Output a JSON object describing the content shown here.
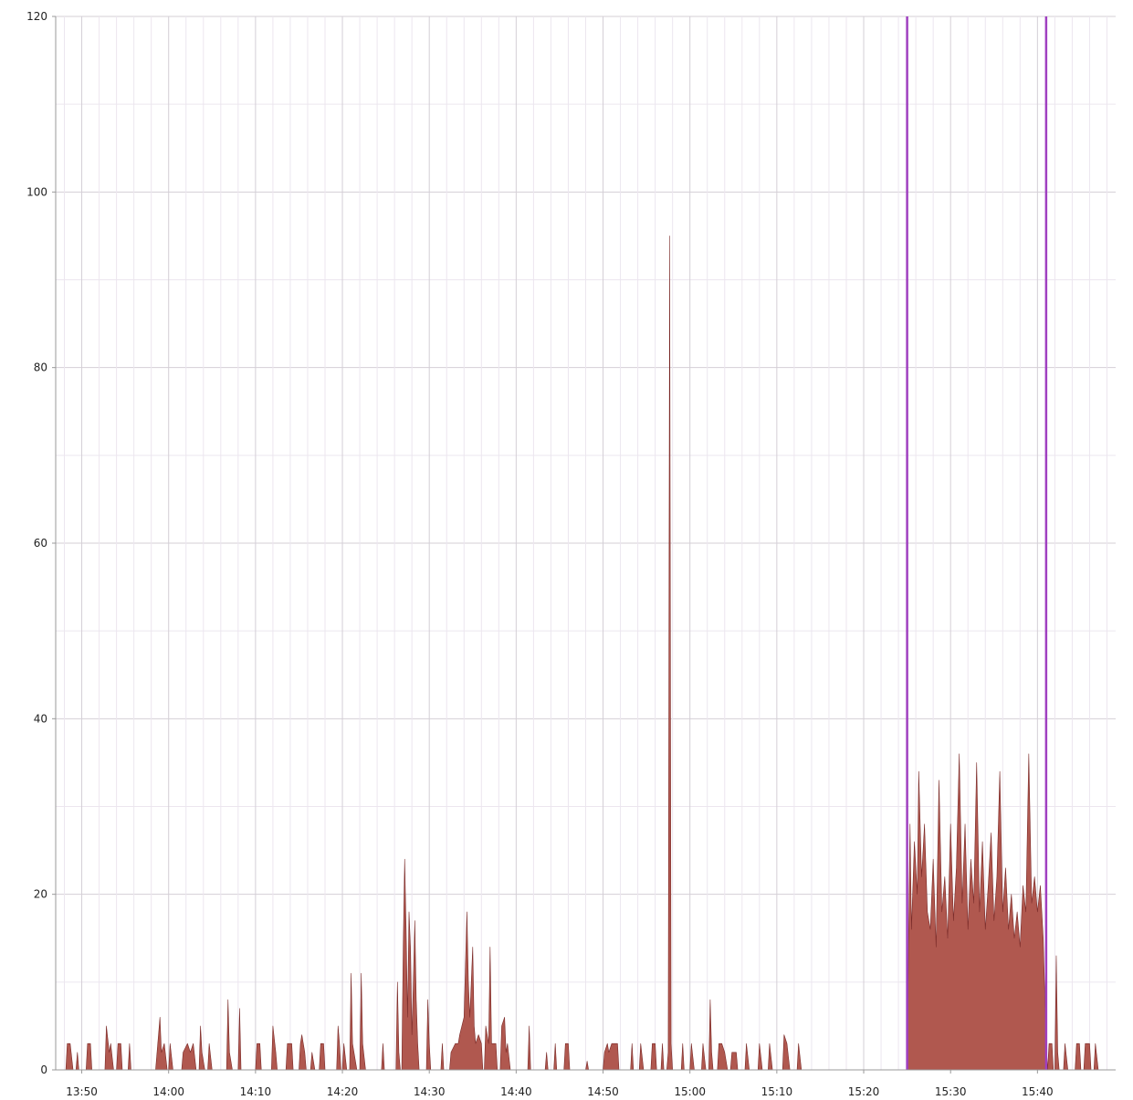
{
  "chart_data": {
    "type": "area",
    "title": "",
    "xlabel": "",
    "ylabel": "",
    "ylim": [
      0,
      120
    ],
    "xlim": [
      "13:47",
      "15:49"
    ],
    "grid": true,
    "legend": "none",
    "x_ticks": [
      "13:50",
      "14:00",
      "14:10",
      "14:20",
      "14:30",
      "14:40",
      "14:50",
      "15:00",
      "15:10",
      "15:20",
      "15:30",
      "15:40"
    ],
    "y_ticks": [
      "0",
      "20",
      "40",
      "60",
      "80",
      "100",
      "120"
    ],
    "markers": [
      "15:25",
      "15:41"
    ],
    "colors": {
      "area_fill": "#b0584f",
      "area_dark": "#7a2a28",
      "marker": "#a040c0",
      "grid_major": "#d4cfd6",
      "grid_minor": "#ece6ef",
      "axis": "#999999"
    },
    "series": [
      {
        "points": [
          [
            "13:48:10",
            0
          ],
          [
            "13:48:20",
            3
          ],
          [
            "13:48:40",
            3
          ],
          [
            "13:49:00",
            0
          ],
          [
            "13:49:20",
            0
          ],
          [
            "13:49:30",
            2
          ],
          [
            "13:49:40",
            0
          ],
          [
            "13:50:30",
            0
          ],
          [
            "13:50:40",
            3
          ],
          [
            "13:51:00",
            3
          ],
          [
            "13:51:10",
            0
          ],
          [
            "13:52:40",
            0
          ],
          [
            "13:52:50",
            5
          ],
          [
            "13:53:10",
            2
          ],
          [
            "13:53:20",
            3
          ],
          [
            "13:53:40",
            0
          ],
          [
            "13:54:00",
            0
          ],
          [
            "13:54:10",
            3
          ],
          [
            "13:54:30",
            3
          ],
          [
            "13:54:40",
            0
          ],
          [
            "13:55:20",
            0
          ],
          [
            "13:55:30",
            3
          ],
          [
            "13:55:40",
            0
          ],
          [
            "13:58:30",
            0
          ],
          [
            "13:58:40",
            2
          ],
          [
            "13:59:00",
            6
          ],
          [
            "13:59:10",
            2
          ],
          [
            "13:59:30",
            3
          ],
          [
            "13:59:50",
            0
          ],
          [
            "14:00:00",
            0
          ],
          [
            "14:00:10",
            3
          ],
          [
            "14:00:30",
            0
          ],
          [
            "14:01:30",
            0
          ],
          [
            "14:01:40",
            2
          ],
          [
            "14:02:10",
            3
          ],
          [
            "14:02:30",
            2
          ],
          [
            "14:02:50",
            3
          ],
          [
            "14:03:10",
            0
          ],
          [
            "14:03:30",
            0
          ],
          [
            "14:03:40",
            5
          ],
          [
            "14:03:50",
            2
          ],
          [
            "14:04:10",
            0
          ],
          [
            "14:04:30",
            0
          ],
          [
            "14:04:40",
            3
          ],
          [
            "14:05:00",
            0
          ],
          [
            "14:06:40",
            0
          ],
          [
            "14:06:50",
            8
          ],
          [
            "14:07:00",
            2
          ],
          [
            "14:07:20",
            0
          ],
          [
            "14:08:00",
            0
          ],
          [
            "14:08:10",
            7
          ],
          [
            "14:08:20",
            0
          ],
          [
            "14:10:00",
            0
          ],
          [
            "14:10:10",
            3
          ],
          [
            "14:10:30",
            3
          ],
          [
            "14:10:40",
            0
          ],
          [
            "14:11:50",
            0
          ],
          [
            "14:12:00",
            5
          ],
          [
            "14:12:20",
            2
          ],
          [
            "14:12:30",
            0
          ],
          [
            "14:13:30",
            0
          ],
          [
            "14:13:40",
            3
          ],
          [
            "14:14:10",
            3
          ],
          [
            "14:14:20",
            0
          ],
          [
            "14:15:00",
            0
          ],
          [
            "14:15:10",
            3
          ],
          [
            "14:15:20",
            4
          ],
          [
            "14:15:40",
            2
          ],
          [
            "14:15:50",
            0
          ],
          [
            "14:16:20",
            0
          ],
          [
            "14:16:30",
            2
          ],
          [
            "14:16:50",
            0
          ],
          [
            "14:17:20",
            0
          ],
          [
            "14:17:30",
            3
          ],
          [
            "14:17:50",
            3
          ],
          [
            "14:18:00",
            0
          ],
          [
            "14:19:20",
            0
          ],
          [
            "14:19:30",
            5
          ],
          [
            "14:19:40",
            3
          ],
          [
            "14:19:50",
            0
          ],
          [
            "14:20:00",
            0
          ],
          [
            "14:20:10",
            3
          ],
          [
            "14:20:30",
            0
          ],
          [
            "14:20:50",
            0
          ],
          [
            "14:21:00",
            11
          ],
          [
            "14:21:10",
            3
          ],
          [
            "14:21:40",
            0
          ],
          [
            "14:22:00",
            0
          ],
          [
            "14:22:10",
            11
          ],
          [
            "14:22:20",
            3
          ],
          [
            "14:22:40",
            0
          ],
          [
            "14:24:30",
            0
          ],
          [
            "14:24:40",
            3
          ],
          [
            "14:24:50",
            0
          ],
          [
            "14:26:10",
            0
          ],
          [
            "14:26:20",
            10
          ],
          [
            "14:26:30",
            2
          ],
          [
            "14:26:40",
            0
          ],
          [
            "14:26:50",
            0
          ],
          [
            "14:27:00",
            14
          ],
          [
            "14:27:10",
            24
          ],
          [
            "14:27:20",
            16
          ],
          [
            "14:27:30",
            6
          ],
          [
            "14:27:40",
            18
          ],
          [
            "14:27:50",
            14
          ],
          [
            "14:28:00",
            4
          ],
          [
            "14:28:10",
            10
          ],
          [
            "14:28:20",
            17
          ],
          [
            "14:28:30",
            8
          ],
          [
            "14:28:40",
            3
          ],
          [
            "14:28:50",
            0
          ],
          [
            "14:29:40",
            0
          ],
          [
            "14:29:50",
            8
          ],
          [
            "14:30:00",
            3
          ],
          [
            "14:30:10",
            0
          ],
          [
            "14:31:20",
            0
          ],
          [
            "14:31:30",
            3
          ],
          [
            "14:31:40",
            0
          ],
          [
            "14:32:20",
            0
          ],
          [
            "14:32:30",
            2
          ],
          [
            "14:33:00",
            3
          ],
          [
            "14:33:20",
            3
          ],
          [
            "14:33:30",
            4
          ],
          [
            "14:34:00",
            6
          ],
          [
            "14:34:10",
            12
          ],
          [
            "14:34:20",
            18
          ],
          [
            "14:34:30",
            10
          ],
          [
            "14:34:40",
            6
          ],
          [
            "14:35:00",
            14
          ],
          [
            "14:35:10",
            5
          ],
          [
            "14:35:20",
            3
          ],
          [
            "14:35:40",
            4
          ],
          [
            "14:36:00",
            3
          ],
          [
            "14:36:10",
            0
          ],
          [
            "14:36:20",
            0
          ],
          [
            "14:36:30",
            5
          ],
          [
            "14:36:50",
            3
          ],
          [
            "14:37:00",
            14
          ],
          [
            "14:37:10",
            3
          ],
          [
            "14:37:40",
            3
          ],
          [
            "14:37:50",
            0
          ],
          [
            "14:38:10",
            0
          ],
          [
            "14:38:20",
            5
          ],
          [
            "14:38:40",
            6
          ],
          [
            "14:38:50",
            2
          ],
          [
            "14:39:00",
            3
          ],
          [
            "14:39:20",
            0
          ],
          [
            "14:41:20",
            0
          ],
          [
            "14:41:30",
            5
          ],
          [
            "14:41:40",
            0
          ],
          [
            "14:43:20",
            0
          ],
          [
            "14:43:30",
            2
          ],
          [
            "14:43:40",
            0
          ],
          [
            "14:44:20",
            0
          ],
          [
            "14:44:30",
            3
          ],
          [
            "14:44:40",
            0
          ],
          [
            "14:45:30",
            0
          ],
          [
            "14:45:40",
            3
          ],
          [
            "14:46:00",
            3
          ],
          [
            "14:46:10",
            0
          ],
          [
            "14:48:00",
            0
          ],
          [
            "14:48:10",
            1
          ],
          [
            "14:48:20",
            0
          ],
          [
            "14:50:00",
            0
          ],
          [
            "14:50:10",
            2
          ],
          [
            "14:50:30",
            3
          ],
          [
            "14:50:40",
            2
          ],
          [
            "14:51:00",
            3
          ],
          [
            "14:51:20",
            3
          ],
          [
            "14:51:40",
            3
          ],
          [
            "14:51:50",
            0
          ],
          [
            "14:53:10",
            0
          ],
          [
            "14:53:20",
            3
          ],
          [
            "14:53:30",
            0
          ],
          [
            "14:54:10",
            0
          ],
          [
            "14:54:20",
            3
          ],
          [
            "14:54:40",
            0
          ],
          [
            "14:55:30",
            0
          ],
          [
            "14:55:40",
            3
          ],
          [
            "14:56:00",
            3
          ],
          [
            "14:56:10",
            0
          ],
          [
            "14:56:40",
            0
          ],
          [
            "14:56:50",
            3
          ],
          [
            "14:57:00",
            0
          ],
          [
            "14:57:20",
            0
          ],
          [
            "14:57:30",
            2
          ],
          [
            "14:57:40",
            95
          ],
          [
            "14:57:50",
            3
          ],
          [
            "14:58:00",
            0
          ],
          [
            "14:59:00",
            0
          ],
          [
            "14:59:10",
            3
          ],
          [
            "14:59:20",
            0
          ],
          [
            "15:00:00",
            0
          ],
          [
            "15:00:10",
            3
          ],
          [
            "15:00:30",
            0
          ],
          [
            "15:01:20",
            0
          ],
          [
            "15:01:30",
            3
          ],
          [
            "15:01:50",
            0
          ],
          [
            "15:02:10",
            0
          ],
          [
            "15:02:20",
            8
          ],
          [
            "15:02:30",
            2
          ],
          [
            "15:02:40",
            0
          ],
          [
            "15:03:10",
            0
          ],
          [
            "15:03:20",
            3
          ],
          [
            "15:03:40",
            3
          ],
          [
            "15:04:00",
            2
          ],
          [
            "15:04:20",
            0
          ],
          [
            "15:04:40",
            0
          ],
          [
            "15:04:50",
            2
          ],
          [
            "15:05:20",
            2
          ],
          [
            "15:05:30",
            0
          ],
          [
            "15:06:20",
            0
          ],
          [
            "15:06:30",
            3
          ],
          [
            "15:06:50",
            0
          ],
          [
            "15:07:50",
            0
          ],
          [
            "15:08:00",
            3
          ],
          [
            "15:08:20",
            0
          ],
          [
            "15:09:00",
            0
          ],
          [
            "15:09:10",
            3
          ],
          [
            "15:09:30",
            0
          ],
          [
            "15:10:40",
            0
          ],
          [
            "15:10:50",
            4
          ],
          [
            "15:11:10",
            3
          ],
          [
            "15:11:30",
            0
          ],
          [
            "15:12:20",
            0
          ],
          [
            "15:12:30",
            3
          ],
          [
            "15:12:50",
            0
          ],
          [
            "15:25:00",
            0
          ],
          [
            "15:25:10",
            15
          ],
          [
            "15:25:20",
            28
          ],
          [
            "15:25:30",
            16
          ],
          [
            "15:25:50",
            26
          ],
          [
            "15:26:10",
            20
          ],
          [
            "15:26:20",
            34
          ],
          [
            "15:26:40",
            22
          ],
          [
            "15:27:00",
            28
          ],
          [
            "15:27:20",
            18
          ],
          [
            "15:27:40",
            16
          ],
          [
            "15:28:00",
            24
          ],
          [
            "15:28:20",
            14
          ],
          [
            "15:28:40",
            33
          ],
          [
            "15:29:00",
            18
          ],
          [
            "15:29:20",
            22
          ],
          [
            "15:29:40",
            15
          ],
          [
            "15:30:00",
            28
          ],
          [
            "15:30:20",
            17
          ],
          [
            "15:30:40",
            23
          ],
          [
            "15:31:00",
            36
          ],
          [
            "15:31:20",
            19
          ],
          [
            "15:31:40",
            28
          ],
          [
            "15:32:00",
            16
          ],
          [
            "15:32:20",
            24
          ],
          [
            "15:32:40",
            19
          ],
          [
            "15:33:00",
            35
          ],
          [
            "15:33:20",
            18
          ],
          [
            "15:33:40",
            26
          ],
          [
            "15:34:00",
            16
          ],
          [
            "15:34:20",
            21
          ],
          [
            "15:34:40",
            27
          ],
          [
            "15:35:00",
            17
          ],
          [
            "15:35:20",
            22
          ],
          [
            "15:35:40",
            34
          ],
          [
            "15:36:00",
            18
          ],
          [
            "15:36:20",
            23
          ],
          [
            "15:36:40",
            16
          ],
          [
            "15:37:00",
            20
          ],
          [
            "15:37:20",
            15
          ],
          [
            "15:37:40",
            18
          ],
          [
            "15:38:00",
            14
          ],
          [
            "15:38:20",
            21
          ],
          [
            "15:38:40",
            18
          ],
          [
            "15:39:00",
            36
          ],
          [
            "15:39:20",
            19
          ],
          [
            "15:39:40",
            22
          ],
          [
            "15:40:00",
            18
          ],
          [
            "15:40:20",
            21
          ],
          [
            "15:40:40",
            15
          ],
          [
            "15:41:00",
            3
          ],
          [
            "15:41:10",
            0
          ],
          [
            "15:41:20",
            3
          ],
          [
            "15:41:40",
            3
          ],
          [
            "15:41:50",
            0
          ],
          [
            "15:42:00",
            0
          ],
          [
            "15:42:10",
            13
          ],
          [
            "15:42:20",
            2
          ],
          [
            "15:42:30",
            0
          ],
          [
            "15:43:00",
            0
          ],
          [
            "15:43:10",
            3
          ],
          [
            "15:43:30",
            0
          ],
          [
            "15:44:20",
            0
          ],
          [
            "15:44:30",
            3
          ],
          [
            "15:44:50",
            3
          ],
          [
            "15:45:00",
            0
          ],
          [
            "15:45:20",
            0
          ],
          [
            "15:45:30",
            3
          ],
          [
            "15:46:00",
            3
          ],
          [
            "15:46:10",
            0
          ],
          [
            "15:46:30",
            0
          ],
          [
            "15:46:40",
            3
          ],
          [
            "15:47:00",
            0
          ]
        ]
      }
    ]
  }
}
